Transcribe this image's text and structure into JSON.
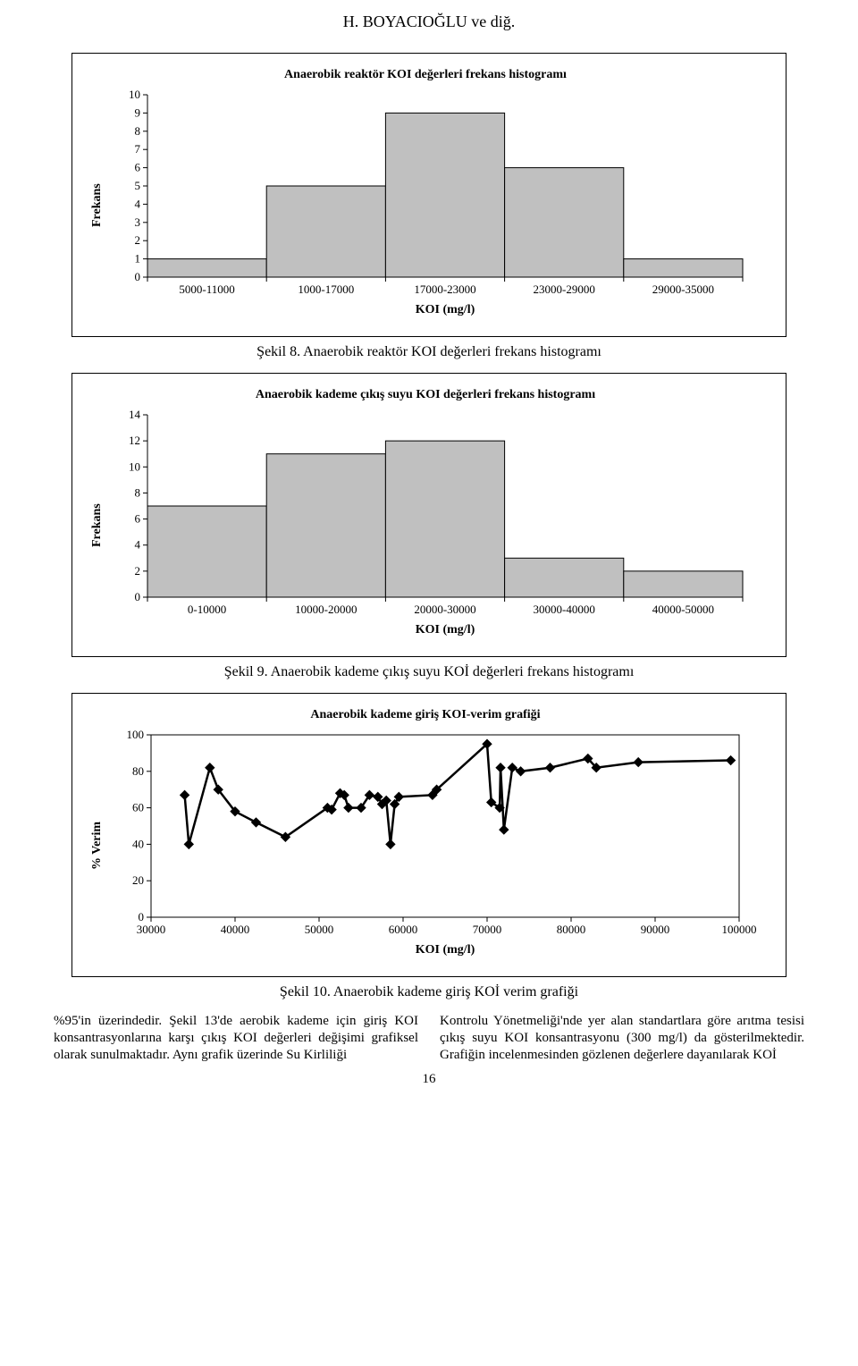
{
  "page_header": "H. BOYACIOĞLU ve diğ.",
  "page_number": "16",
  "colors": {
    "bar_fill": "#c0c0c0",
    "axis": "#000000",
    "grid": "#e0e0e0",
    "bg": "#ffffff",
    "line": "#000000",
    "marker": "#000000"
  },
  "chart1": {
    "type": "histogram",
    "title": "Anaerobik reaktör KOI değerleri frekans histogramı",
    "y_label": "Frekans",
    "x_label": "KOI (mg/l)",
    "categories": [
      "5000-11000",
      "1000-17000",
      "17000-23000",
      "23000-29000",
      "29000-35000"
    ],
    "values": [
      1,
      5,
      9,
      6,
      1
    ],
    "ylim": [
      0,
      10
    ],
    "ytick_step": 1,
    "bar_width": 1.0,
    "font": {
      "tick": 13,
      "axis_label": 14,
      "title": 14
    }
  },
  "chart2": {
    "type": "histogram",
    "title": "Anaerobik kademe çıkış suyu KOI değerleri frekans histogramı",
    "y_label": "Frekans",
    "x_label": "KOI (mg/l)",
    "categories": [
      "0-10000",
      "10000-20000",
      "20000-30000",
      "30000-40000",
      "40000-50000"
    ],
    "values": [
      7,
      11,
      12,
      3,
      2
    ],
    "ylim": [
      0,
      14
    ],
    "ytick_step": 2,
    "bar_width": 1.0,
    "font": {
      "tick": 13,
      "axis_label": 14,
      "title": 14
    }
  },
  "chart3": {
    "type": "line",
    "title": "Anaerobik kademe giriş KOI-verim grafiği",
    "y_label": "% Verim",
    "x_label": "KOI (mg/l)",
    "xticks": [
      30000,
      40000,
      50000,
      60000,
      70000,
      80000,
      90000,
      100000
    ],
    "yticks": [
      0,
      20,
      40,
      60,
      80,
      100
    ],
    "xlim": [
      30000,
      100000
    ],
    "ylim": [
      0,
      100
    ],
    "points": [
      [
        34000,
        67
      ],
      [
        34500,
        40
      ],
      [
        37000,
        82
      ],
      [
        38000,
        70
      ],
      [
        40000,
        58
      ],
      [
        42500,
        52
      ],
      [
        46000,
        44
      ],
      [
        51000,
        60
      ],
      [
        51500,
        59
      ],
      [
        52500,
        68
      ],
      [
        53000,
        67
      ],
      [
        53500,
        60
      ],
      [
        55000,
        60
      ],
      [
        56000,
        67
      ],
      [
        57000,
        66
      ],
      [
        57500,
        62
      ],
      [
        58000,
        64
      ],
      [
        58500,
        40
      ],
      [
        59000,
        62
      ],
      [
        59500,
        66
      ],
      [
        63500,
        67
      ],
      [
        64000,
        70
      ],
      [
        70000,
        95
      ],
      [
        70500,
        63
      ],
      [
        71500,
        60
      ],
      [
        71600,
        82
      ],
      [
        72000,
        48
      ],
      [
        73000,
        82
      ],
      [
        74000,
        80
      ],
      [
        77500,
        82
      ],
      [
        82000,
        87
      ],
      [
        83000,
        82
      ],
      [
        88000,
        85
      ],
      [
        99000,
        86
      ]
    ],
    "marker_size": 5,
    "line_width": 2.5,
    "font": {
      "tick": 13,
      "axis_label": 14,
      "title": 14
    }
  },
  "captions": {
    "c1": "Şekil 8. Anaerobik reaktör KOI değerleri frekans histogramı",
    "c2": "Şekil 9. Anaerobik kademe çıkış suyu KOİ değerleri frekans histogramı",
    "c3": "Şekil 10. Anaerobik kademe giriş KOİ verim grafiği"
  },
  "body_text": {
    "left": "%95'in üzerindedir. Şekil 13'de aerobik kademe için giriş KOI konsantrasyonlarına karşı çıkış KOI değerleri değişimi grafiksel olarak sunulmaktadır. Aynı grafik üzerinde Su Kirliliği",
    "right": "Kontrolu Yönetmeliği'nde yer alan standartlara göre arıtma tesisi çıkış suyu KOI konsantrasyonu (300 mg/l) da gösterilmektedir. Grafiğin incelenmesinden gözlenen değerlere dayanılarak KOİ"
  }
}
